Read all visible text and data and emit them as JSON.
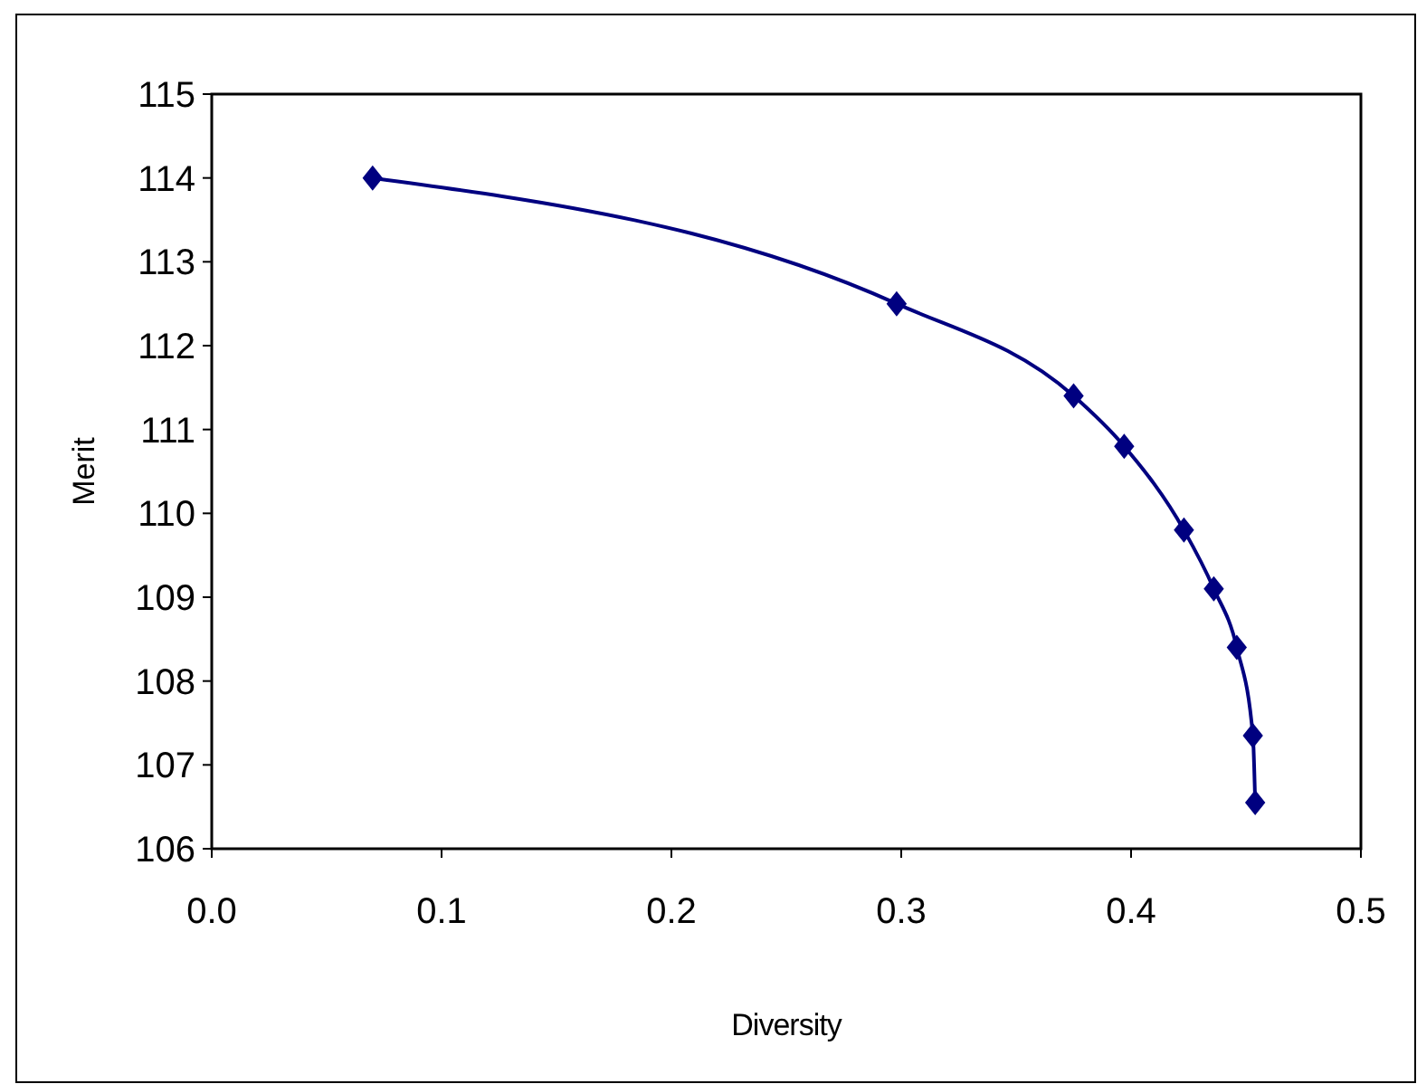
{
  "chart_data": {
    "type": "line",
    "xlabel": "Diversity",
    "ylabel": "Merit",
    "x": [
      0.07,
      0.298,
      0.375,
      0.397,
      0.423,
      0.436,
      0.446,
      0.453,
      0.454
    ],
    "series": [
      {
        "color": "#000080",
        "values": [
          114.0,
          112.5,
          111.4,
          110.8,
          109.8,
          109.1,
          108.4,
          107.35,
          106.55
        ]
      }
    ],
    "xlim": [
      0,
      0.5
    ],
    "xticks": [
      {
        "value": 0,
        "label": "0.0"
      },
      {
        "value": 0.1,
        "label": "0.1"
      },
      {
        "value": 0.2,
        "label": "0.2"
      },
      {
        "value": 0.3,
        "label": "0.3"
      },
      {
        "value": 0.4,
        "label": "0.4"
      },
      {
        "value": 0.5,
        "label": "0.5"
      }
    ],
    "ylim": [
      106,
      115
    ],
    "yticks": [
      106,
      107,
      108,
      109,
      110,
      111,
      112,
      113,
      114,
      115
    ],
    "grid": false,
    "marker": "diamond",
    "line_style": "solid"
  }
}
